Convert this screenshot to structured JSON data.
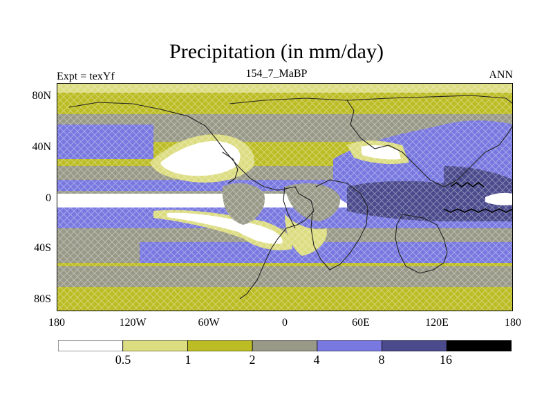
{
  "title": "Precipitation (in mm/day)",
  "left_label": "Expt = texYf",
  "center_label": "154_7_MaBP",
  "right_label": "ANN",
  "lat_ticks": [
    "80N",
    "40N",
    "0",
    "40S",
    "80S"
  ],
  "lon_ticks": [
    "180",
    "120W",
    "60W",
    "0",
    "60E",
    "120E",
    "180"
  ],
  "colorbar": {
    "levels": [
      "0.5",
      "1",
      "2",
      "4",
      "8",
      "16"
    ],
    "colors": [
      "#ffffff",
      "#dcdc80",
      "#bcbc24",
      "#999988",
      "#7878e0",
      "#4a4a8c",
      "#000000"
    ]
  }
}
